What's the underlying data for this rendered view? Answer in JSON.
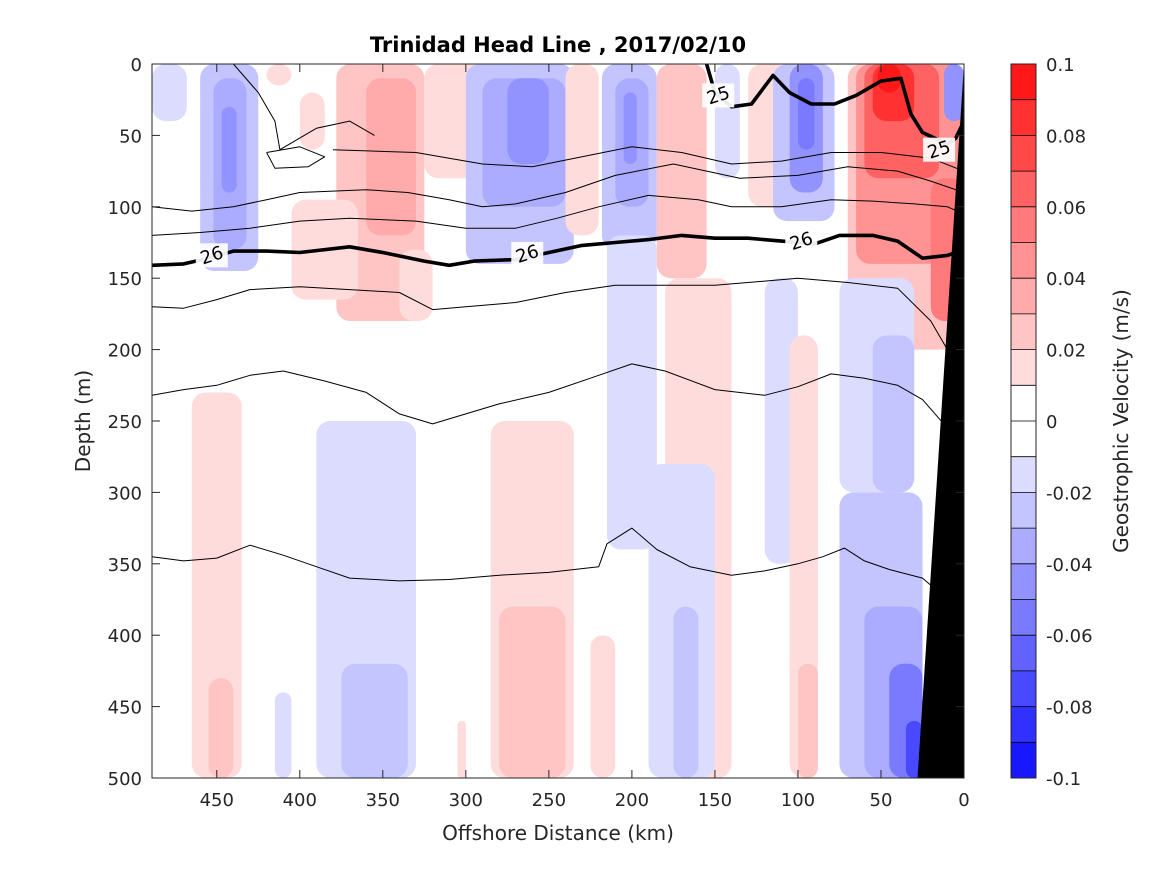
{
  "chart_data": {
    "type": "heatmap",
    "title": "Trinidad Head Line , 2017/02/10",
    "xlabel": "Offshore Distance (km)",
    "ylabel": "Depth (m)",
    "xlim": [
      489,
      0
    ],
    "ylim": [
      0,
      500
    ],
    "x_reversed": true,
    "y_reversed": true,
    "x_ticks": [
      "450",
      "400",
      "350",
      "300",
      "250",
      "200",
      "150",
      "100",
      "50",
      "0"
    ],
    "y_ticks": [
      "0",
      "50",
      "100",
      "150",
      "200",
      "250",
      "300",
      "350",
      "400",
      "450",
      "500"
    ],
    "colorbar": {
      "label": "Geostrophic Velocity (m/s)",
      "range": [
        -0.1,
        0.1
      ],
      "ticks": [
        "0.1",
        "0.08",
        "0.06",
        "0.04",
        "0.02",
        "0",
        "-0.02",
        "-0.04",
        "-0.06",
        "-0.08",
        "-0.1"
      ],
      "level_step": 0.01,
      "positive_color": "#ff0000",
      "negative_color": "#0000ff",
      "zero_color": "#ffffff"
    },
    "contour_labels": [
      {
        "text": "25",
        "x": 148,
        "y": 22
      },
      {
        "text": "25",
        "x": 15,
        "y": 60
      },
      {
        "text": "26",
        "x": 453,
        "y": 134
      },
      {
        "text": "26",
        "x": 263,
        "y": 133
      },
      {
        "text": "26",
        "x": 98,
        "y": 124
      }
    ],
    "velocity_cells": [
      {
        "x0": 489,
        "x1": 468,
        "y0": 0,
        "y1": 40,
        "v": -0.01
      },
      {
        "x0": 460,
        "x1": 425,
        "y0": 0,
        "y1": 145,
        "v": -0.02
      },
      {
        "x0": 452,
        "x1": 432,
        "y0": 10,
        "y1": 130,
        "v": -0.03
      },
      {
        "x0": 447,
        "x1": 438,
        "y0": 30,
        "y1": 90,
        "v": -0.04
      },
      {
        "x0": 420,
        "x1": 405,
        "y0": 0,
        "y1": 15,
        "v": 0.01
      },
      {
        "x0": 400,
        "x1": 385,
        "y0": 20,
        "y1": 60,
        "v": 0.01
      },
      {
        "x0": 378,
        "x1": 325,
        "y0": 0,
        "y1": 180,
        "v": 0.02
      },
      {
        "x0": 360,
        "x1": 330,
        "y0": 10,
        "y1": 120,
        "v": 0.03
      },
      {
        "x0": 405,
        "x1": 365,
        "y0": 95,
        "y1": 165,
        "v": 0.01
      },
      {
        "x0": 340,
        "x1": 320,
        "y0": 130,
        "y1": 180,
        "v": 0.01
      },
      {
        "x0": 325,
        "x1": 280,
        "y0": 0,
        "y1": 80,
        "v": 0.01
      },
      {
        "x0": 300,
        "x1": 235,
        "y0": 0,
        "y1": 140,
        "v": -0.02
      },
      {
        "x0": 290,
        "x1": 240,
        "y0": 10,
        "y1": 100,
        "v": -0.03
      },
      {
        "x0": 275,
        "x1": 250,
        "y0": 10,
        "y1": 70,
        "v": -0.04
      },
      {
        "x0": 240,
        "x1": 220,
        "y0": 0,
        "y1": 120,
        "v": 0.01
      },
      {
        "x0": 218,
        "x1": 185,
        "y0": 0,
        "y1": 130,
        "v": -0.02
      },
      {
        "x0": 210,
        "x1": 190,
        "y0": 10,
        "y1": 100,
        "v": -0.03
      },
      {
        "x0": 205,
        "x1": 197,
        "y0": 20,
        "y1": 70,
        "v": -0.04
      },
      {
        "x0": 215,
        "x1": 185,
        "y0": 120,
        "y1": 340,
        "v": -0.01
      },
      {
        "x0": 185,
        "x1": 155,
        "y0": 0,
        "y1": 150,
        "v": 0.02
      },
      {
        "x0": 180,
        "x1": 140,
        "y0": 150,
        "y1": 500,
        "v": 0.01
      },
      {
        "x0": 150,
        "x1": 135,
        "y0": 0,
        "y1": 80,
        "v": -0.01
      },
      {
        "x0": 130,
        "x1": 105,
        "y0": 0,
        "y1": 100,
        "v": 0.01
      },
      {
        "x0": 115,
        "x1": 78,
        "y0": 0,
        "y1": 110,
        "v": -0.02
      },
      {
        "x0": 105,
        "x1": 85,
        "y0": 0,
        "y1": 90,
        "v": -0.04
      },
      {
        "x0": 100,
        "x1": 90,
        "y0": 10,
        "y1": 60,
        "v": -0.05
      },
      {
        "x0": 120,
        "x1": 100,
        "y0": 150,
        "y1": 350,
        "v": -0.01
      },
      {
        "x0": 105,
        "x1": 88,
        "y0": 190,
        "y1": 500,
        "v": 0.01
      },
      {
        "x0": 100,
        "x1": 88,
        "y0": 420,
        "y1": 500,
        "v": 0.02
      },
      {
        "x0": 70,
        "x1": 0,
        "y0": 0,
        "y1": 200,
        "v": 0.02
      },
      {
        "x0": 65,
        "x1": 0,
        "y0": 0,
        "y1": 140,
        "v": 0.04
      },
      {
        "x0": 60,
        "x1": 15,
        "y0": 0,
        "y1": 80,
        "v": 0.06
      },
      {
        "x0": 55,
        "x1": 30,
        "y0": 0,
        "y1": 40,
        "v": 0.08
      },
      {
        "x0": 52,
        "x1": 38,
        "y0": 0,
        "y1": 20,
        "v": 0.09
      },
      {
        "x0": 20,
        "x1": 0,
        "y0": 80,
        "y1": 180,
        "v": 0.05
      },
      {
        "x0": 12,
        "x1": 0,
        "y0": 0,
        "y1": 40,
        "v": -0.04
      },
      {
        "x0": 465,
        "x1": 435,
        "y0": 230,
        "y1": 500,
        "v": 0.01
      },
      {
        "x0": 455,
        "x1": 440,
        "y0": 430,
        "y1": 500,
        "v": 0.02
      },
      {
        "x0": 415,
        "x1": 405,
        "y0": 440,
        "y1": 500,
        "v": -0.01
      },
      {
        "x0": 390,
        "x1": 330,
        "y0": 250,
        "y1": 500,
        "v": -0.01
      },
      {
        "x0": 375,
        "x1": 335,
        "y0": 420,
        "y1": 500,
        "v": -0.02
      },
      {
        "x0": 305,
        "x1": 300,
        "y0": 460,
        "y1": 500,
        "v": 0.01
      },
      {
        "x0": 285,
        "x1": 235,
        "y0": 250,
        "y1": 500,
        "v": 0.01
      },
      {
        "x0": 280,
        "x1": 240,
        "y0": 380,
        "y1": 500,
        "v": 0.02
      },
      {
        "x0": 225,
        "x1": 210,
        "y0": 400,
        "y1": 500,
        "v": 0.01
      },
      {
        "x0": 190,
        "x1": 150,
        "y0": 280,
        "y1": 500,
        "v": -0.01
      },
      {
        "x0": 175,
        "x1": 160,
        "y0": 380,
        "y1": 500,
        "v": -0.02
      },
      {
        "x0": 75,
        "x1": 25,
        "y0": 300,
        "y1": 500,
        "v": -0.02
      },
      {
        "x0": 60,
        "x1": 25,
        "y0": 380,
        "y1": 500,
        "v": -0.03
      },
      {
        "x0": 45,
        "x1": 25,
        "y0": 420,
        "y1": 500,
        "v": -0.05
      },
      {
        "x0": 35,
        "x1": 25,
        "y0": 460,
        "y1": 500,
        "v": -0.07
      },
      {
        "x0": 75,
        "x1": 30,
        "y0": 150,
        "y1": 300,
        "v": -0.01
      },
      {
        "x0": 55,
        "x1": 30,
        "y0": 190,
        "y1": 300,
        "v": -0.02
      }
    ],
    "isopycnals": [
      {
        "bold": false,
        "points": [
          [
            458,
            0
          ],
          [
            440,
            0
          ],
          [
            425,
            20
          ],
          [
            415,
            40
          ],
          [
            412,
            60
          ],
          [
            390,
            45
          ],
          [
            370,
            40
          ],
          [
            355,
            50
          ]
        ]
      },
      {
        "bold": false,
        "points": [
          [
            420,
            62
          ],
          [
            400,
            58
          ],
          [
            385,
            65
          ],
          [
            395,
            72
          ],
          [
            415,
            73
          ],
          [
            420,
            62
          ]
        ]
      },
      {
        "bold": false,
        "points": [
          [
            489,
            100
          ],
          [
            465,
            103
          ],
          [
            440,
            100
          ],
          [
            420,
            95
          ],
          [
            400,
            90
          ],
          [
            360,
            88
          ],
          [
            335,
            90
          ],
          [
            310,
            95
          ],
          [
            290,
            100
          ],
          [
            270,
            98
          ],
          [
            240,
            90
          ],
          [
            210,
            78
          ],
          [
            175,
            70
          ],
          [
            155,
            75
          ],
          [
            135,
            80
          ],
          [
            100,
            78
          ],
          [
            70,
            72
          ],
          [
            40,
            75
          ],
          [
            20,
            82
          ],
          [
            0,
            90
          ]
        ]
      },
      {
        "bold": false,
        "points": [
          [
            489,
            120
          ],
          [
            460,
            118
          ],
          [
            430,
            115
          ],
          [
            400,
            110
          ],
          [
            370,
            108
          ],
          [
            330,
            110
          ],
          [
            300,
            115
          ],
          [
            270,
            115
          ],
          [
            245,
            108
          ],
          [
            220,
            100
          ],
          [
            190,
            92
          ],
          [
            160,
            95
          ],
          [
            140,
            100
          ],
          [
            110,
            100
          ],
          [
            80,
            95
          ],
          [
            55,
            96
          ],
          [
            30,
            98
          ],
          [
            10,
            100
          ],
          [
            0,
            105
          ]
        ]
      },
      {
        "bold": false,
        "points": [
          [
            380,
            60
          ],
          [
            330,
            62
          ],
          [
            290,
            70
          ],
          [
            260,
            72
          ],
          [
            230,
            65
          ],
          [
            200,
            58
          ],
          [
            170,
            62
          ],
          [
            140,
            70
          ],
          [
            110,
            68
          ],
          [
            80,
            62
          ],
          [
            50,
            62
          ],
          [
            20,
            66
          ],
          [
            0,
            75
          ]
        ]
      },
      {
        "bold": true,
        "points": [
          [
            489,
            141
          ],
          [
            470,
            140
          ],
          [
            455,
            136
          ],
          [
            440,
            131
          ],
          [
            420,
            131
          ],
          [
            400,
            132
          ],
          [
            370,
            128
          ],
          [
            350,
            132
          ],
          [
            325,
            138
          ],
          [
            310,
            141
          ],
          [
            295,
            138
          ],
          [
            270,
            137
          ],
          [
            250,
            132
          ],
          [
            230,
            127
          ],
          [
            210,
            125
          ],
          [
            190,
            123
          ],
          [
            170,
            120
          ],
          [
            150,
            122
          ],
          [
            130,
            122
          ],
          [
            110,
            124
          ],
          [
            90,
            126
          ],
          [
            75,
            120
          ],
          [
            55,
            120
          ],
          [
            40,
            124
          ],
          [
            25,
            136
          ],
          [
            10,
            134
          ],
          [
            0,
            130
          ]
        ]
      },
      {
        "bold": true,
        "points": [
          [
            155,
            0
          ],
          [
            150,
            20
          ],
          [
            140,
            30
          ],
          [
            128,
            28
          ],
          [
            115,
            8
          ],
          [
            105,
            20
          ],
          [
            92,
            28
          ],
          [
            78,
            28
          ],
          [
            65,
            22
          ],
          [
            50,
            12
          ],
          [
            38,
            10
          ],
          [
            32,
            35
          ],
          [
            25,
            48
          ],
          [
            10,
            56
          ],
          [
            5,
            52
          ],
          [
            0,
            40
          ]
        ]
      },
      {
        "bold": false,
        "points": [
          [
            489,
            170
          ],
          [
            470,
            171
          ],
          [
            450,
            165
          ],
          [
            430,
            158
          ],
          [
            400,
            156
          ],
          [
            370,
            158
          ],
          [
            340,
            160
          ],
          [
            320,
            172
          ],
          [
            300,
            170
          ],
          [
            270,
            167
          ],
          [
            240,
            160
          ],
          [
            210,
            155
          ],
          [
            180,
            155
          ],
          [
            150,
            155
          ],
          [
            120,
            152
          ],
          [
            100,
            150
          ],
          [
            70,
            153
          ],
          [
            40,
            157
          ],
          [
            20,
            180
          ],
          [
            10,
            200
          ]
        ]
      },
      {
        "bold": false,
        "points": [
          [
            489,
            232
          ],
          [
            470,
            228
          ],
          [
            450,
            225
          ],
          [
            430,
            218
          ],
          [
            410,
            215
          ],
          [
            385,
            222
          ],
          [
            360,
            230
          ],
          [
            340,
            245
          ],
          [
            320,
            252
          ],
          [
            300,
            245
          ],
          [
            280,
            238
          ],
          [
            250,
            230
          ],
          [
            225,
            220
          ],
          [
            200,
            210
          ],
          [
            180,
            215
          ],
          [
            150,
            228
          ],
          [
            120,
            232
          ],
          [
            100,
            226
          ],
          [
            80,
            217
          ],
          [
            60,
            220
          ],
          [
            40,
            225
          ],
          [
            25,
            235
          ],
          [
            10,
            255
          ]
        ]
      },
      {
        "bold": false,
        "points": [
          [
            489,
            345
          ],
          [
            470,
            348
          ],
          [
            450,
            346
          ],
          [
            430,
            337
          ],
          [
            410,
            344
          ],
          [
            390,
            352
          ],
          [
            370,
            360
          ],
          [
            340,
            362
          ],
          [
            310,
            361
          ],
          [
            280,
            358
          ],
          [
            250,
            356
          ],
          [
            220,
            352
          ],
          [
            215,
            336
          ],
          [
            200,
            325
          ],
          [
            185,
            340
          ],
          [
            165,
            352
          ],
          [
            140,
            358
          ],
          [
            120,
            355
          ],
          [
            100,
            350
          ],
          [
            85,
            345
          ],
          [
            72,
            339
          ],
          [
            60,
            348
          ],
          [
            45,
            354
          ],
          [
            25,
            360
          ],
          [
            15,
            370
          ]
        ]
      }
    ],
    "bathymetry_polygon": [
      [
        0,
        0
      ],
      [
        0,
        500
      ],
      [
        28,
        500
      ]
    ]
  }
}
